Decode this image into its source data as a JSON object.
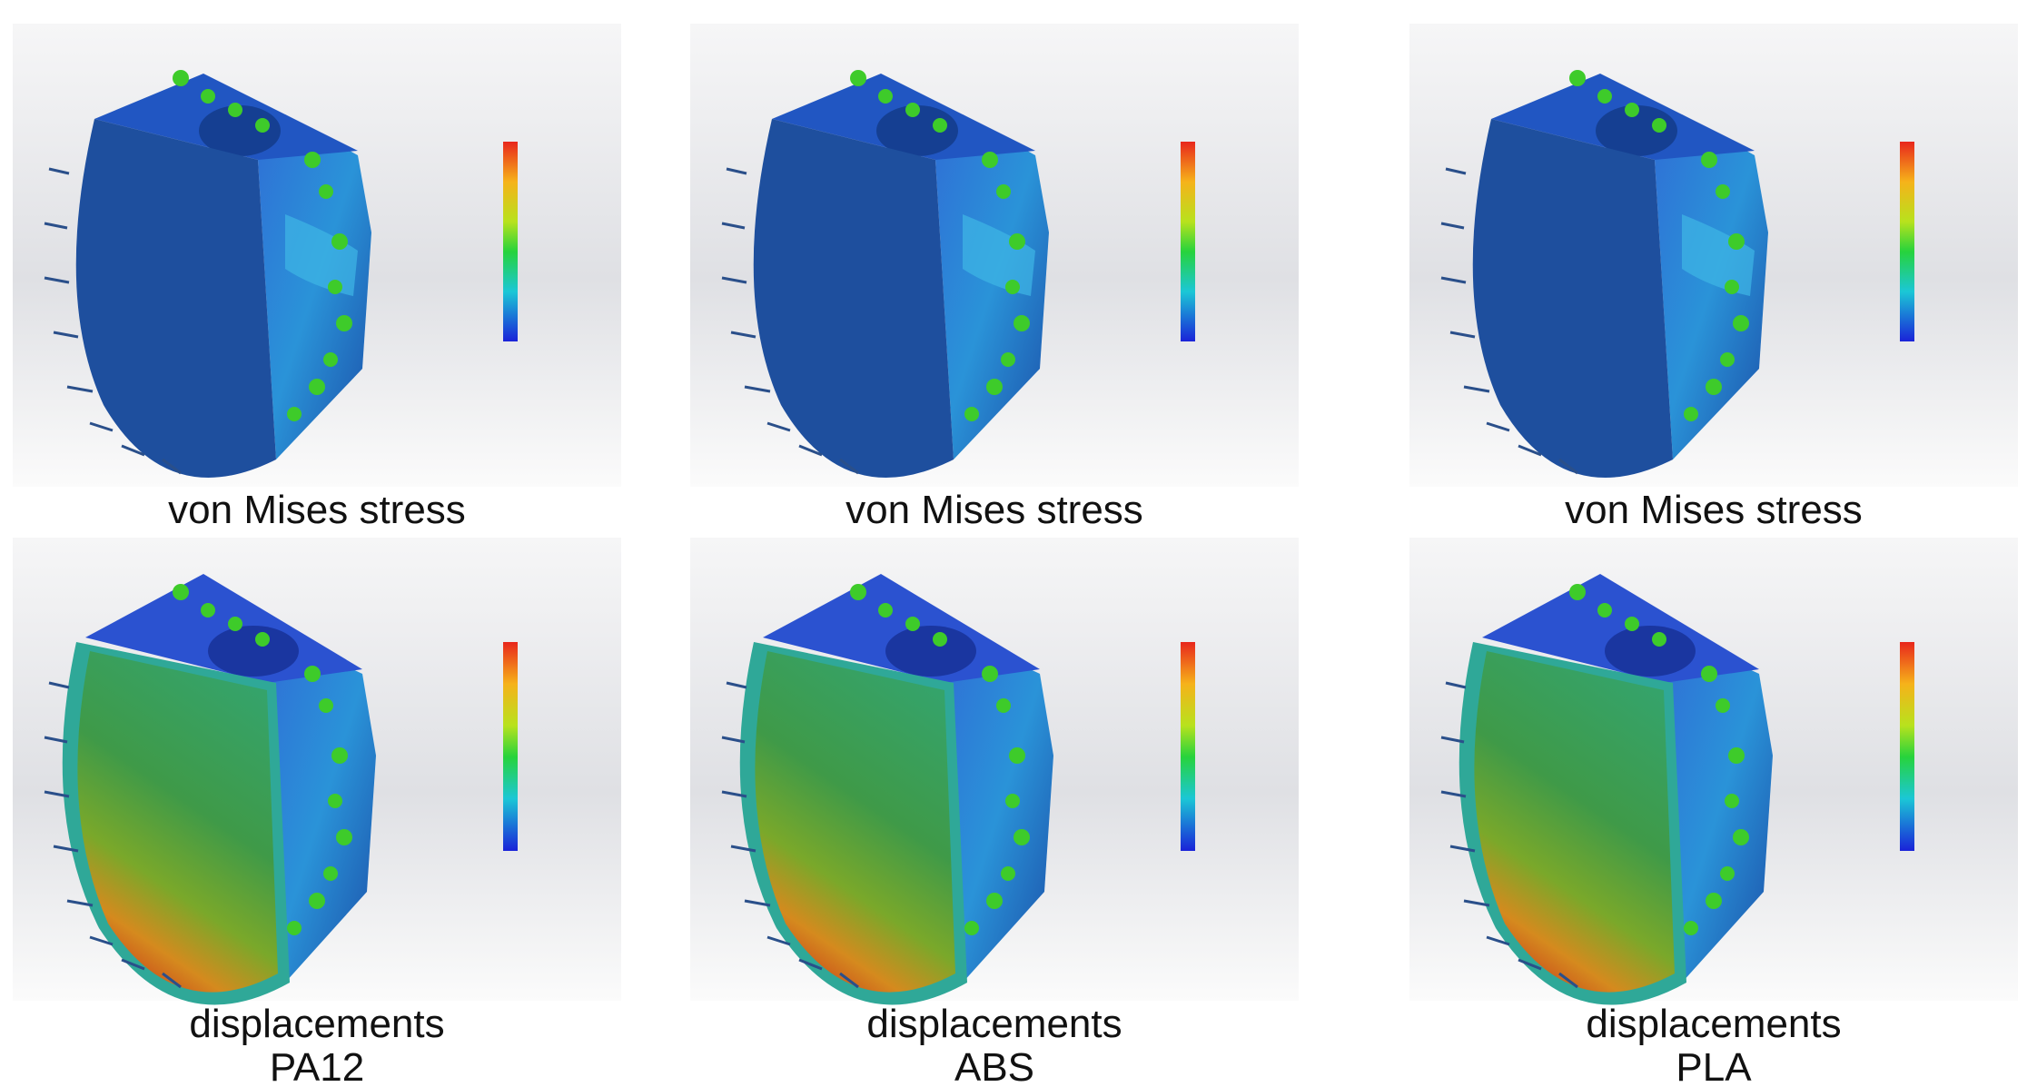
{
  "columns": [
    {
      "top_caption": "von Mises stress",
      "bottom_caption": "displacements",
      "material": "PA12"
    },
    {
      "top_caption": "von Mises stress",
      "bottom_caption": "displacements",
      "material": "ABS"
    },
    {
      "top_caption": "von Mises stress",
      "bottom_caption": "displacements",
      "material": "PLA"
    }
  ]
}
